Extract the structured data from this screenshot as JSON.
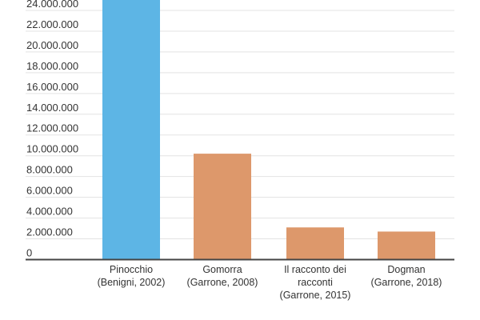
{
  "chart_data": {
    "type": "bar",
    "title": "",
    "xlabel": "",
    "ylabel": "",
    "categories": [
      [
        "Pinocchio",
        "(Benigni, 2002)"
      ],
      [
        "Gomorra",
        "(Garrone, 2008)"
      ],
      [
        "Il racconto dei",
        "racconti",
        "(Garrone, 2015)"
      ],
      [
        "Dogman",
        "(Garrone, 2018)"
      ]
    ],
    "values": [
      26000000,
      10200000,
      3100000,
      2700000
    ],
    "colors": [
      "#5db5e5",
      "#dd986b",
      "#dd986b",
      "#dd986b"
    ],
    "ylim": [
      0,
      25000000
    ],
    "yticks": [
      0,
      2000000,
      4000000,
      6000000,
      8000000,
      10000000,
      12000000,
      14000000,
      16000000,
      18000000,
      20000000,
      22000000,
      24000000
    ],
    "ytick_labels": [
      "0",
      "2.000.000",
      "4.000.000",
      "6.000.000",
      "8.000.000",
      "10.000.000",
      "12.000.000",
      "14.000.000",
      "16.000.000",
      "18.000.000",
      "20.000.000",
      "22.000.000",
      "24.000.000"
    ],
    "grid": true,
    "legend": "none"
  }
}
